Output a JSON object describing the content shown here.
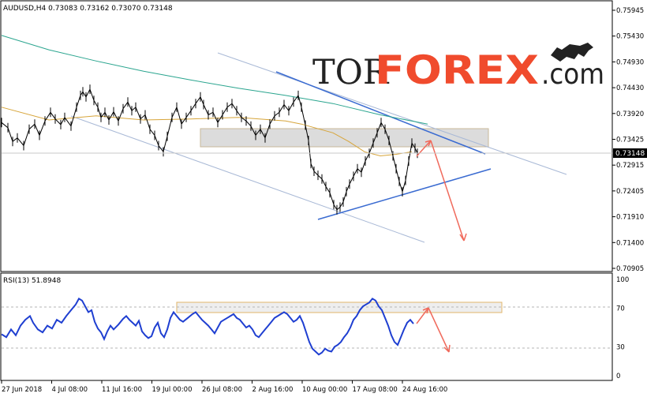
{
  "chart_data": {
    "type": "line",
    "symbol_header": "AUDUSD,H4  0.73083 0.73162 0.73070 0.73148",
    "current_price": "0.73148",
    "logo": {
      "tor": "TOR",
      "forex": "FOREX",
      "dotcom": ".com"
    },
    "price_axis": {
      "ylim": [
        0.70905,
        0.75941
      ],
      "ticks": [
        "0.75945",
        "0.75430",
        "0.74930",
        "0.74430",
        "0.73920",
        "0.73425",
        "0.72915",
        "0.72405",
        "0.71910",
        "0.71400",
        "0.70905"
      ]
    },
    "rsi": {
      "header": "RSI(13) 51.8948",
      "ylim": [
        0,
        100
      ],
      "ticks": [
        "100",
        "70",
        "30",
        "0"
      ],
      "levels": [
        70,
        30
      ]
    },
    "time_axis": [
      "27 Jun 2018",
      "4 Jul 08:00",
      "11 Jul 16:00",
      "19 Jul 00:00",
      "26 Jul 08:00",
      "2 Aug 16:00",
      "10 Aug 00:00",
      "17 Aug 08:00",
      "24 Aug 16:00"
    ],
    "price_path": [
      [
        0,
        0.7375
      ],
      [
        8,
        0.7365
      ],
      [
        14,
        0.7338
      ],
      [
        20,
        0.7345
      ],
      [
        28,
        0.733
      ],
      [
        35,
        0.7362
      ],
      [
        42,
        0.7372
      ],
      [
        48,
        0.735
      ],
      [
        55,
        0.7378
      ],
      [
        62,
        0.7395
      ],
      [
        68,
        0.7382
      ],
      [
        75,
        0.7371
      ],
      [
        80,
        0.7385
      ],
      [
        88,
        0.7368
      ],
      [
        95,
        0.7405
      ],
      [
        100,
        0.7428
      ],
      [
        103,
        0.7435
      ],
      [
        107,
        0.7425
      ],
      [
        112,
        0.744
      ],
      [
        117,
        0.7418
      ],
      [
        122,
        0.7405
      ],
      [
        126,
        0.7385
      ],
      [
        131,
        0.7395
      ],
      [
        136,
        0.738
      ],
      [
        142,
        0.7396
      ],
      [
        148,
        0.7378
      ],
      [
        154,
        0.7402
      ],
      [
        160,
        0.7415
      ],
      [
        165,
        0.7398
      ],
      [
        170,
        0.7405
      ],
      [
        176,
        0.7382
      ],
      [
        182,
        0.739
      ],
      [
        188,
        0.7362
      ],
      [
        194,
        0.735
      ],
      [
        199,
        0.733
      ],
      [
        205,
        0.7318
      ],
      [
        210,
        0.7348
      ],
      [
        216,
        0.7385
      ],
      [
        222,
        0.7405
      ],
      [
        228,
        0.7372
      ],
      [
        234,
        0.7385
      ],
      [
        240,
        0.7398
      ],
      [
        246,
        0.7412
      ],
      [
        252,
        0.7425
      ],
      [
        256,
        0.741
      ],
      [
        262,
        0.739
      ],
      [
        268,
        0.7395
      ],
      [
        274,
        0.7375
      ],
      [
        280,
        0.739
      ],
      [
        286,
        0.7405
      ],
      [
        292,
        0.7412
      ],
      [
        298,
        0.7398
      ],
      [
        304,
        0.7385
      ],
      [
        310,
        0.7378
      ],
      [
        316,
        0.7368
      ],
      [
        322,
        0.735
      ],
      [
        328,
        0.7362
      ],
      [
        334,
        0.7345
      ],
      [
        340,
        0.7372
      ],
      [
        346,
        0.7388
      ],
      [
        352,
        0.7395
      ],
      [
        358,
        0.741
      ],
      [
        364,
        0.7398
      ],
      [
        370,
        0.7415
      ],
      [
        376,
        0.7428
      ],
      [
        380,
        0.7405
      ],
      [
        385,
        0.737
      ],
      [
        389,
        0.734
      ],
      [
        392,
        0.7295
      ],
      [
        396,
        0.728
      ],
      [
        401,
        0.7272
      ],
      [
        406,
        0.7265
      ],
      [
        411,
        0.725
      ],
      [
        416,
        0.7238
      ],
      [
        421,
        0.7215
      ],
      [
        425,
        0.7205
      ],
      [
        429,
        0.721
      ],
      [
        433,
        0.722
      ],
      [
        437,
        0.724
      ],
      [
        441,
        0.7255
      ],
      [
        446,
        0.727
      ],
      [
        451,
        0.7285
      ],
      [
        456,
        0.7278
      ],
      [
        461,
        0.73
      ],
      [
        466,
        0.7315
      ],
      [
        471,
        0.7335
      ],
      [
        476,
        0.7355
      ],
      [
        481,
        0.7375
      ],
      [
        486,
        0.7362
      ],
      [
        491,
        0.734
      ],
      [
        496,
        0.731
      ],
      [
        500,
        0.7285
      ],
      [
        504,
        0.726
      ],
      [
        508,
        0.724
      ],
      [
        512,
        0.7262
      ],
      [
        516,
        0.73
      ],
      [
        520,
        0.7335
      ],
      [
        524,
        0.7325
      ],
      [
        527,
        0.7315
      ]
    ],
    "ma_yellow": [
      [
        0,
        0.7405
      ],
      [
        60,
        0.738
      ],
      [
        120,
        0.7388
      ],
      [
        180,
        0.738
      ],
      [
        240,
        0.7382
      ],
      [
        300,
        0.7385
      ],
      [
        360,
        0.7378
      ],
      [
        380,
        0.7372
      ],
      [
        420,
        0.7355
      ],
      [
        440,
        0.7338
      ],
      [
        460,
        0.7318
      ],
      [
        480,
        0.731
      ],
      [
        500,
        0.7313
      ],
      [
        520,
        0.7318
      ]
    ],
    "ma_teal": [
      [
        0,
        0.7545
      ],
      [
        60,
        0.7517
      ],
      [
        120,
        0.7495
      ],
      [
        180,
        0.7475
      ],
      [
        240,
        0.7458
      ],
      [
        300,
        0.7442
      ],
      [
        360,
        0.7428
      ],
      [
        420,
        0.7412
      ],
      [
        480,
        0.739
      ],
      [
        540,
        0.7372
      ]
    ],
    "rsi_path": [
      [
        0,
        43
      ],
      [
        6,
        40
      ],
      [
        12,
        48
      ],
      [
        18,
        42
      ],
      [
        24,
        52
      ],
      [
        30,
        58
      ],
      [
        36,
        62
      ],
      [
        40,
        55
      ],
      [
        46,
        48
      ],
      [
        52,
        45
      ],
      [
        58,
        52
      ],
      [
        64,
        49
      ],
      [
        70,
        58
      ],
      [
        76,
        55
      ],
      [
        82,
        62
      ],
      [
        88,
        68
      ],
      [
        94,
        74
      ],
      [
        98,
        80
      ],
      [
        102,
        78
      ],
      [
        106,
        72
      ],
      [
        110,
        66
      ],
      [
        114,
        68
      ],
      [
        118,
        56
      ],
      [
        122,
        49
      ],
      [
        126,
        45
      ],
      [
        130,
        38
      ],
      [
        134,
        46
      ],
      [
        138,
        52
      ],
      [
        142,
        48
      ],
      [
        148,
        53
      ],
      [
        154,
        59
      ],
      [
        158,
        62
      ],
      [
        162,
        58
      ],
      [
        166,
        55
      ],
      [
        170,
        52
      ],
      [
        174,
        57
      ],
      [
        178,
        46
      ],
      [
        182,
        42
      ],
      [
        186,
        39
      ],
      [
        190,
        41
      ],
      [
        194,
        50
      ],
      [
        198,
        55
      ],
      [
        202,
        44
      ],
      [
        206,
        40
      ],
      [
        210,
        48
      ],
      [
        214,
        60
      ],
      [
        218,
        66
      ],
      [
        222,
        62
      ],
      [
        226,
        58
      ],
      [
        230,
        56
      ],
      [
        236,
        60
      ],
      [
        242,
        64
      ],
      [
        246,
        66
      ],
      [
        250,
        62
      ],
      [
        254,
        58
      ],
      [
        258,
        55
      ],
      [
        262,
        52
      ],
      [
        266,
        48
      ],
      [
        270,
        44
      ],
      [
        274,
        50
      ],
      [
        278,
        56
      ],
      [
        282,
        58
      ],
      [
        286,
        60
      ],
      [
        290,
        62
      ],
      [
        294,
        64
      ],
      [
        298,
        60
      ],
      [
        302,
        58
      ],
      [
        306,
        54
      ],
      [
        310,
        50
      ],
      [
        314,
        52
      ],
      [
        318,
        48
      ],
      [
        322,
        42
      ],
      [
        326,
        40
      ],
      [
        330,
        44
      ],
      [
        334,
        48
      ],
      [
        338,
        52
      ],
      [
        342,
        56
      ],
      [
        346,
        60
      ],
      [
        350,
        62
      ],
      [
        354,
        64
      ],
      [
        358,
        66
      ],
      [
        362,
        64
      ],
      [
        366,
        60
      ],
      [
        370,
        56
      ],
      [
        374,
        58
      ],
      [
        378,
        62
      ],
      [
        382,
        55
      ],
      [
        386,
        45
      ],
      [
        390,
        35
      ],
      [
        394,
        28
      ],
      [
        398,
        25
      ],
      [
        402,
        22
      ],
      [
        406,
        24
      ],
      [
        410,
        28
      ],
      [
        414,
        26
      ],
      [
        418,
        25
      ],
      [
        422,
        30
      ],
      [
        426,
        32
      ],
      [
        430,
        35
      ],
      [
        434,
        40
      ],
      [
        438,
        44
      ],
      [
        442,
        50
      ],
      [
        446,
        58
      ],
      [
        450,
        62
      ],
      [
        454,
        68
      ],
      [
        458,
        72
      ],
      [
        462,
        74
      ],
      [
        466,
        76
      ],
      [
        470,
        80
      ],
      [
        474,
        78
      ],
      [
        478,
        72
      ],
      [
        482,
        68
      ],
      [
        486,
        60
      ],
      [
        490,
        52
      ],
      [
        494,
        42
      ],
      [
        498,
        35
      ],
      [
        502,
        32
      ],
      [
        506,
        40
      ],
      [
        510,
        48
      ],
      [
        514,
        55
      ],
      [
        518,
        58
      ],
      [
        522,
        54
      ]
    ],
    "arrow_note": ""
  }
}
